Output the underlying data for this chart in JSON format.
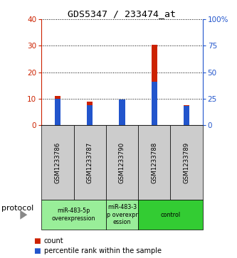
{
  "title": "GDS5347 / 233474_at",
  "samples": [
    "GSM1233786",
    "GSM1233787",
    "GSM1233790",
    "GSM1233788",
    "GSM1233789"
  ],
  "count_values": [
    11,
    9,
    9.5,
    30.5,
    7.5
  ],
  "percentile_values": [
    25,
    19,
    24,
    41,
    18
  ],
  "left_ylim": [
    0,
    40
  ],
  "right_ylim": [
    0,
    100
  ],
  "left_yticks": [
    0,
    10,
    20,
    30,
    40
  ],
  "right_yticks": [
    0,
    25,
    50,
    75,
    100
  ],
  "right_yticklabels": [
    "0",
    "25",
    "50",
    "75",
    "100%"
  ],
  "bar_color": "#cc2200",
  "blue_color": "#2255cc",
  "protocol_groups": [
    {
      "label": "miR-483-5p\noverexpression",
      "start": 0,
      "end": 2,
      "color": "#99ee99"
    },
    {
      "label": "miR-483-3\np overexpr\nession",
      "start": 2,
      "end": 3,
      "color": "#99ee99"
    },
    {
      "label": "control",
      "start": 3,
      "end": 5,
      "color": "#33cc33"
    }
  ],
  "protocol_label": "protocol",
  "legend_count_label": "count",
  "legend_percentile_label": "percentile rank within the sample",
  "sample_box_color": "#cccccc",
  "bar_width": 0.18
}
